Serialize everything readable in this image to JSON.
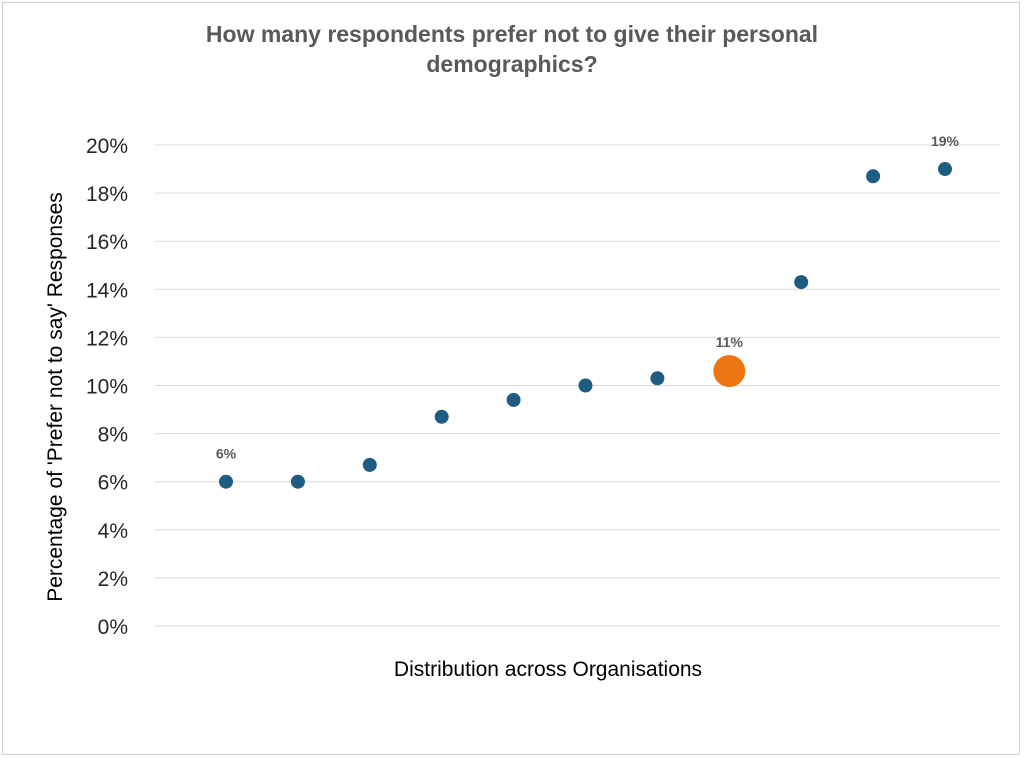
{
  "chart_data": {
    "type": "scatter",
    "title": [
      "How many respondents prefer not to give their personal",
      "demographics?"
    ],
    "xlabel": "Distribution across Organisations",
    "ylabel": "Percentage of 'Prefer not to say' Responses",
    "ylim": [
      0,
      20
    ],
    "yticks": [
      "0%",
      "2%",
      "4%",
      "6%",
      "8%",
      "10%",
      "12%",
      "14%",
      "16%",
      "18%",
      "20%"
    ],
    "grid": "horizontal",
    "points": [
      {
        "x": 1,
        "y": 6.0,
        "label": "6%"
      },
      {
        "x": 2,
        "y": 6.0
      },
      {
        "x": 3,
        "y": 6.7
      },
      {
        "x": 4,
        "y": 8.7
      },
      {
        "x": 5,
        "y": 9.4
      },
      {
        "x": 6,
        "y": 10.0
      },
      {
        "x": 7,
        "y": 10.3
      },
      {
        "x": 8,
        "y": 10.6,
        "label": "11%",
        "highlight": true
      },
      {
        "x": 9,
        "y": 14.3
      },
      {
        "x": 10,
        "y": 18.7
      },
      {
        "x": 11,
        "y": 19.0,
        "label": "19%"
      }
    ],
    "colors": {
      "point": "#1f5c82",
      "highlight": "#ed7614",
      "grid": "#d9d9d9"
    }
  }
}
